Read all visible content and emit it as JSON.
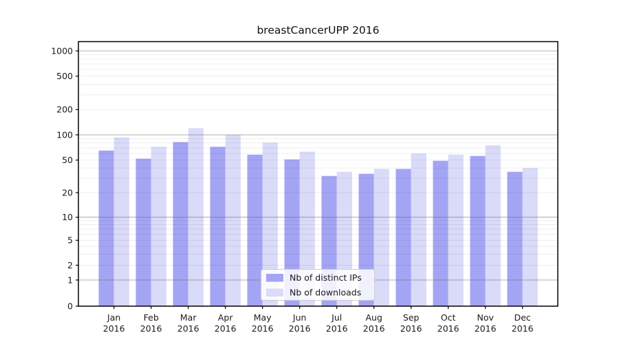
{
  "figure": {
    "title": "breastCancerUPP 2016"
  },
  "chart_data": {
    "type": "bar",
    "title": "breastCancerUPP 2016",
    "categories": [
      "Jan",
      "Feb",
      "Mar",
      "Apr",
      "May",
      "Jun",
      "Jul",
      "Aug",
      "Sep",
      "Oct",
      "Nov",
      "Dec"
    ],
    "category_year": "2016",
    "series": [
      {
        "name": "Nb of distinct IPs",
        "color": "#a4a4f4",
        "values": [
          65,
          52,
          82,
          72,
          58,
          51,
          32,
          34,
          39,
          49,
          56,
          36
        ]
      },
      {
        "name": "Nb of downloads",
        "color": "#dadaf9",
        "values": [
          93,
          72,
          120,
          100,
          81,
          63,
          36,
          39,
          60,
          58,
          75,
          40
        ]
      }
    ],
    "y_ticks": [
      0,
      1,
      2,
      5,
      10,
      20,
      50,
      100,
      200,
      500,
      1000
    ],
    "y_scale": "log above 1, linear 0-1 (symlog-like)",
    "ylim": [
      0,
      1000
    ],
    "grid": true,
    "legend": {
      "position": "lower-center",
      "entries": [
        "Nb of distinct IPs",
        "Nb of downloads"
      ]
    },
    "colors": {
      "frame": "#000000",
      "major_grid": "#9c9c9c",
      "minor_grid": "#ebebeb",
      "tick_label": "#1a1a1a"
    }
  }
}
